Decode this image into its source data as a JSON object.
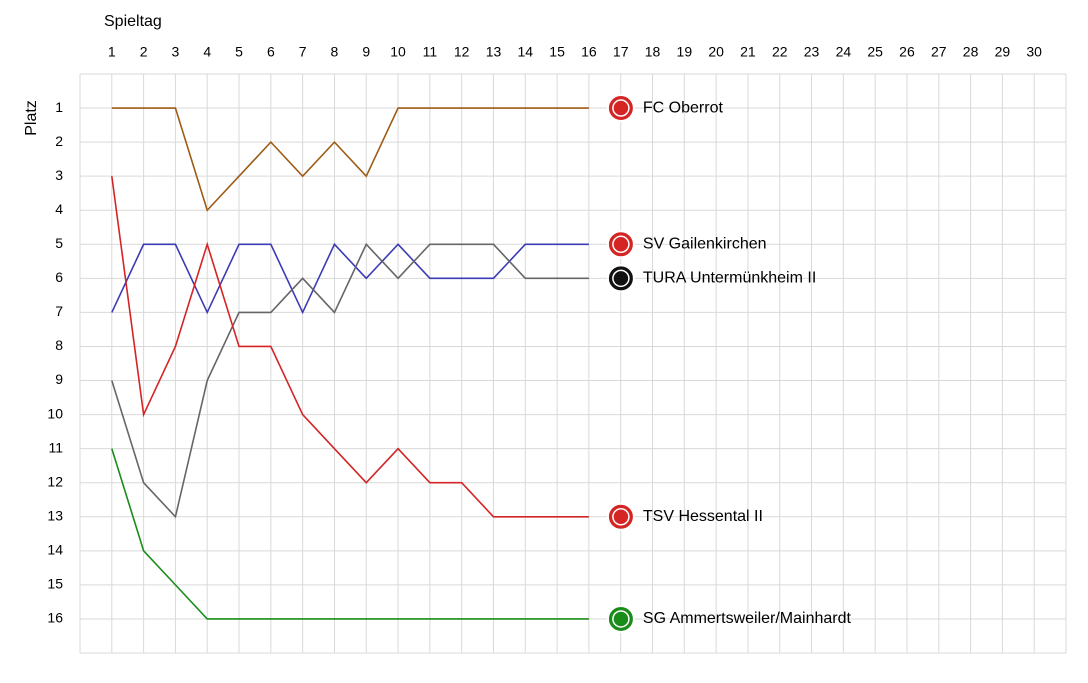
{
  "chart_data": {
    "type": "line",
    "x_label": "Spieltag",
    "y_label": "Platz",
    "x": [
      1,
      2,
      3,
      4,
      5,
      6,
      7,
      8,
      9,
      10,
      11,
      12,
      13,
      14,
      15,
      16
    ],
    "xlim": [
      0,
      31
    ],
    "xticks": [
      1,
      2,
      3,
      4,
      5,
      6,
      7,
      8,
      9,
      10,
      11,
      12,
      13,
      14,
      15,
      16,
      17,
      18,
      19,
      20,
      21,
      22,
      23,
      24,
      25,
      26,
      27,
      28,
      29,
      30
    ],
    "ylim": [
      0,
      17
    ],
    "yticks": [
      1,
      2,
      3,
      4,
      5,
      6,
      7,
      8,
      9,
      10,
      11,
      12,
      13,
      14,
      15,
      16
    ],
    "y_inverted": true,
    "grid": true,
    "series": [
      {
        "name": "FC Oberrot",
        "color": "#9e5b16",
        "values": [
          1,
          1,
          1,
          4,
          3,
          2,
          3,
          2,
          3,
          1,
          1,
          1,
          1,
          1,
          1,
          1
        ]
      },
      {
        "name": "SV Gailenkirchen",
        "color": "#3b3bb5",
        "values": [
          7,
          5,
          5,
          7,
          5,
          5,
          7,
          5,
          6,
          5,
          6,
          6,
          6,
          5,
          5,
          5
        ]
      },
      {
        "name": "TURA Untermünkheim II",
        "color": "#666666",
        "values": [
          9,
          12,
          13,
          9,
          7,
          7,
          6,
          7,
          5,
          6,
          5,
          5,
          5,
          6,
          6,
          6
        ]
      },
      {
        "name": "TSV Hessental II",
        "color": "#d42424",
        "values": [
          3,
          10,
          8,
          5,
          8,
          8,
          10,
          11,
          12,
          11,
          12,
          12,
          13,
          13,
          13,
          13
        ]
      },
      {
        "name": "SG Ammertsweiler/Mainhardt",
        "color": "#1a8c1a",
        "values": [
          11,
          14,
          15,
          16,
          16,
          16,
          16,
          16,
          16,
          16,
          16,
          16,
          16,
          16,
          16,
          16
        ]
      }
    ]
  }
}
